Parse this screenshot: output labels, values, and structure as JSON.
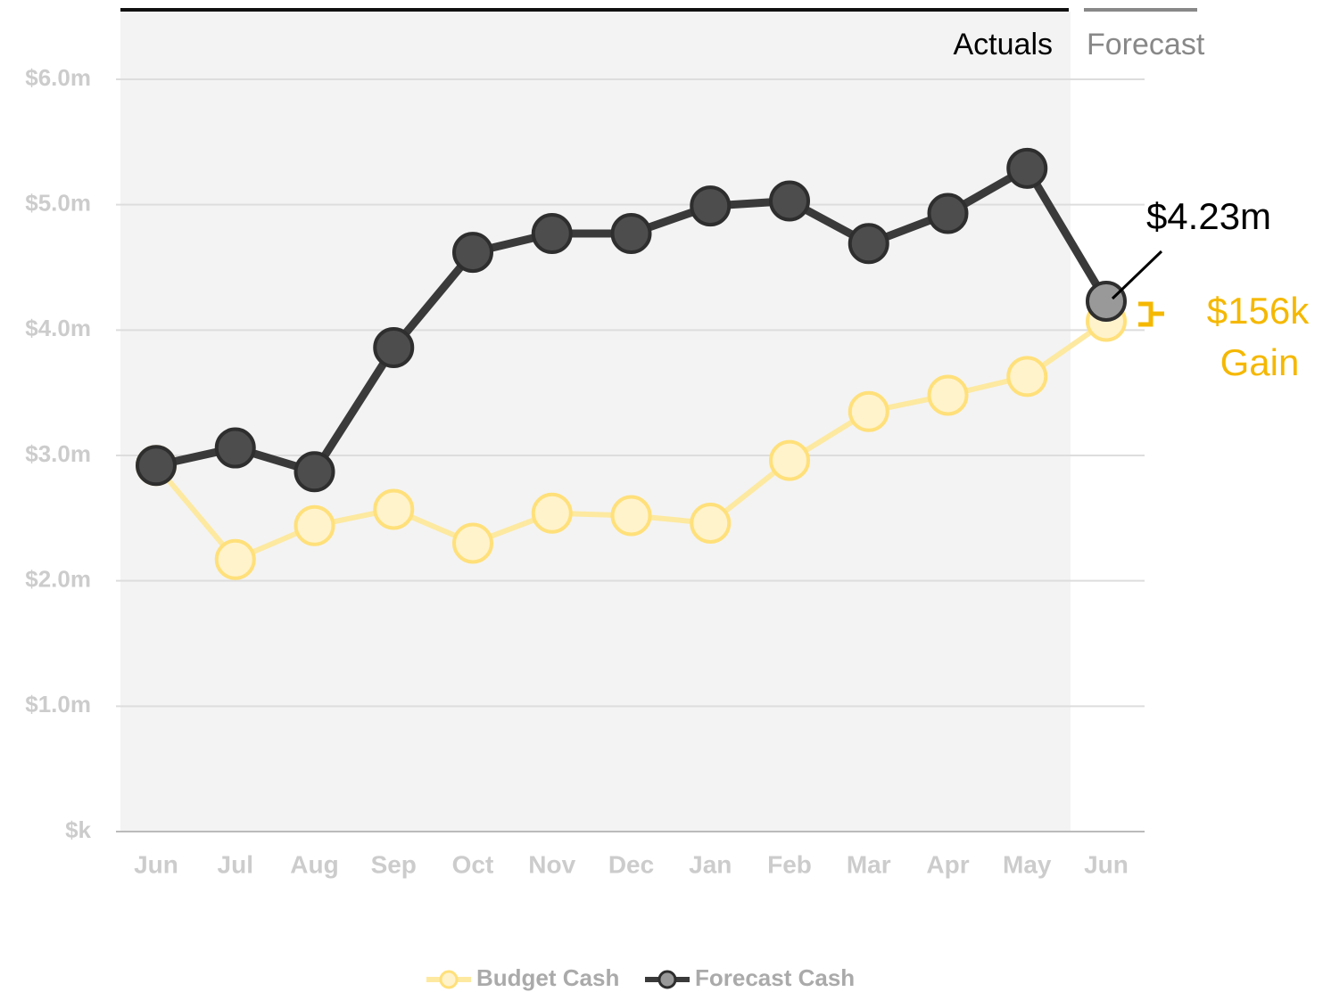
{
  "chart_data": {
    "type": "line",
    "categories": [
      "Jun",
      "Jul",
      "Aug",
      "Sep",
      "Oct",
      "Nov",
      "Dec",
      "Jan",
      "Feb",
      "Mar",
      "Apr",
      "May",
      "Jun"
    ],
    "series": [
      {
        "name": "Budget Cash",
        "color": "#fde9a0",
        "marker_fill": "#fff3cc",
        "marker_stroke": "#ffe07a",
        "values": [
          2.92,
          2.17,
          2.44,
          2.57,
          2.3,
          2.54,
          2.52,
          2.46,
          2.96,
          3.35,
          3.48,
          3.63,
          4.07
        ]
      },
      {
        "name": "Forecast Cash",
        "color": "#3a3a3a",
        "marker_fill": "#4d4d4d",
        "marker_stroke": "#2e2e2e",
        "values": [
          2.92,
          3.06,
          2.87,
          3.86,
          4.62,
          4.77,
          4.77,
          4.99,
          5.03,
          4.69,
          4.93,
          5.29,
          4.23
        ]
      }
    ],
    "ylim": [
      0,
      6
    ],
    "yticks": [
      {
        "value": 0,
        "label": "$k"
      },
      {
        "value": 1,
        "label": "$1.0m"
      },
      {
        "value": 2,
        "label": "$2.0m"
      },
      {
        "value": 3,
        "label": "$3.0m"
      },
      {
        "value": 4,
        "label": "$4.0m"
      },
      {
        "value": 5,
        "label": "$5.0m"
      },
      {
        "value": 6,
        "label": "$6.0m"
      }
    ],
    "grid": true,
    "regions": [
      "Actuals",
      "Forecast"
    ],
    "annotations": [
      "$4.23m",
      "$156k",
      "Gain"
    ],
    "legend": "bottom"
  }
}
